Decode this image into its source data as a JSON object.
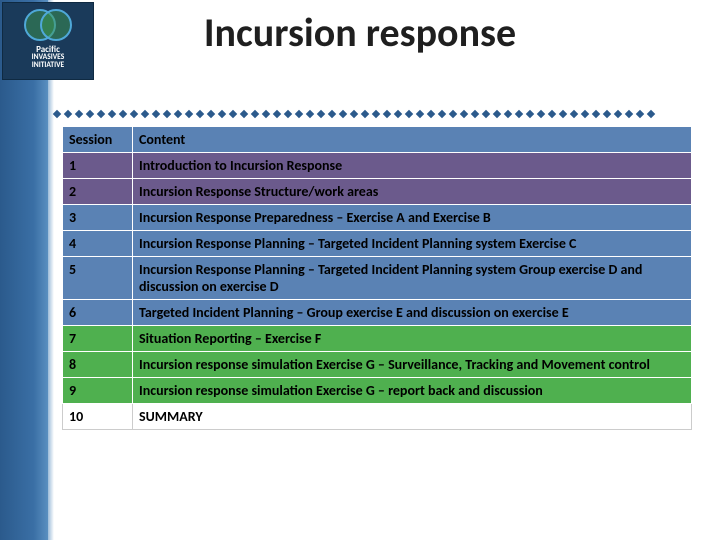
{
  "logo": {
    "line1": "Pacific",
    "line2": "INVASIVES",
    "line3": "INITIATIVE"
  },
  "title": "Incursion response",
  "table": {
    "header": {
      "session": "Session",
      "content": "Content"
    },
    "rows": [
      {
        "n": "1",
        "content": "Introduction to Incursion Response",
        "style": "purple"
      },
      {
        "n": "2",
        "content": "Incursion Response Structure/work areas",
        "style": "purple"
      },
      {
        "n": "3",
        "content": "Incursion Response Preparedness – Exercise A and Exercise B",
        "style": "blue"
      },
      {
        "n": "4",
        "content": "Incursion Response Planning – Targeted Incident Planning system Exercise C",
        "style": "blue"
      },
      {
        "n": "5",
        "content": "Incursion Response Planning – Targeted Incident Planning system Group exercise D and discussion on exercise D",
        "style": "blue"
      },
      {
        "n": "6",
        "content": "Targeted Incident Planning – Group exercise E and discussion on exercise E",
        "style": "blue"
      },
      {
        "n": "7",
        "content": "Situation Reporting – Exercise F",
        "style": "green"
      },
      {
        "n": "8",
        "content": "Incursion response simulation Exercise G – Surveillance, Tracking and Movement control",
        "style": "green"
      },
      {
        "n": "9",
        "content": "Incursion response simulation Exercise G – report back and discussion",
        "style": "green"
      },
      {
        "n": "10",
        "content": "SUMMARY",
        "style": "white"
      }
    ]
  },
  "colors": {
    "header_bg": "#5a82b4",
    "purple_bg": "#6b5a8c",
    "blue_bg": "#5a82b4",
    "green_bg": "#4fb04f",
    "white_bg": "#ffffff",
    "sidebar_from": "#2b5a8c",
    "sidebar_to": "#5a8fc0"
  }
}
